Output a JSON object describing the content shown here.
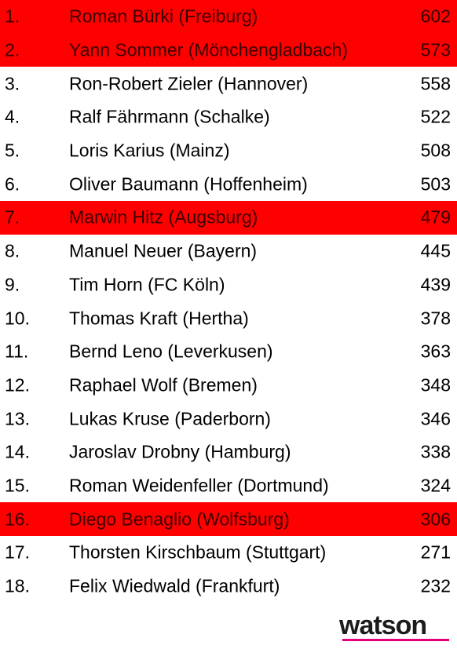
{
  "chart_data": {
    "type": "table",
    "columns": [
      "rank",
      "name",
      "value"
    ],
    "rows": [
      {
        "rank": "1.",
        "name": "Roman Bürki (Freiburg)",
        "value": 602,
        "highlight": true
      },
      {
        "rank": "2.",
        "name": "Yann Sommer (Mönchengladbach)",
        "value": 573,
        "highlight": true
      },
      {
        "rank": "3.",
        "name": "Ron-Robert Zieler (Hannover)",
        "value": 558,
        "highlight": false
      },
      {
        "rank": "4.",
        "name": "Ralf Fährmann (Schalke)",
        "value": 522,
        "highlight": false
      },
      {
        "rank": "5.",
        "name": "Loris Karius (Mainz)",
        "value": 508,
        "highlight": false
      },
      {
        "rank": "6.",
        "name": "Oliver Baumann (Hoffenheim)",
        "value": 503,
        "highlight": false
      },
      {
        "rank": "7.",
        "name": "Marwin Hitz (Augsburg)",
        "value": 479,
        "highlight": true
      },
      {
        "rank": "8.",
        "name": "Manuel Neuer (Bayern)",
        "value": 445,
        "highlight": false
      },
      {
        "rank": "9.",
        "name": "Tim Horn (FC Köln)",
        "value": 439,
        "highlight": false
      },
      {
        "rank": "10.",
        "name": "Thomas Kraft (Hertha)",
        "value": 378,
        "highlight": false
      },
      {
        "rank": "11.",
        "name": "Bernd Leno (Leverkusen)",
        "value": 363,
        "highlight": false
      },
      {
        "rank": "12.",
        "name": "Raphael Wolf (Bremen)",
        "value": 348,
        "highlight": false
      },
      {
        "rank": "13.",
        "name": "Lukas Kruse (Paderborn)",
        "value": 346,
        "highlight": false
      },
      {
        "rank": "14.",
        "name": "Jaroslav Drobny (Hamburg)",
        "value": 338,
        "highlight": false
      },
      {
        "rank": "15.",
        "name": "Roman Weidenfeller (Dortmund)",
        "value": 324,
        "highlight": false
      },
      {
        "rank": "16.",
        "name": "Diego Benaglio (Wolfsburg)",
        "value": 306,
        "highlight": true
      },
      {
        "rank": "17.",
        "name": "Thorsten Kirschbaum (Stuttgart)",
        "value": 271,
        "highlight": false
      },
      {
        "rank": "18.",
        "name": "Felix Wiedwald (Frankfurt)",
        "value": 232,
        "highlight": false
      }
    ],
    "highlight_color": "#ff0000",
    "text_color": "#000000",
    "highlight_text_color": "#3a0000"
  },
  "branding": {
    "logo_text": "watson",
    "logo_color": "#1c1c1c",
    "underline_color": "#e6007e"
  }
}
